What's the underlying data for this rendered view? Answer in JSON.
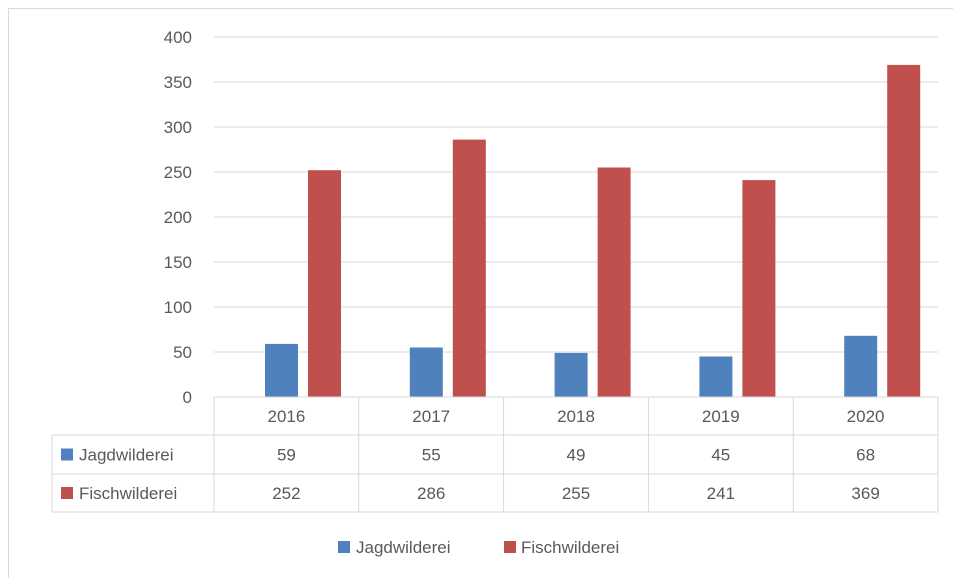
{
  "chart_data": {
    "type": "bar",
    "categories": [
      "2016",
      "2017",
      "2018",
      "2019",
      "2020"
    ],
    "series": [
      {
        "name": "Jagdwilderei",
        "values": [
          59,
          55,
          49,
          45,
          68
        ],
        "color": "#4f81bd"
      },
      {
        "name": "Fischwilderei",
        "values": [
          252,
          286,
          255,
          241,
          369
        ],
        "color": "#c0504d"
      }
    ],
    "ylim": [
      0,
      400
    ],
    "yticks": [
      0,
      50,
      100,
      150,
      200,
      250,
      300,
      350,
      400
    ],
    "grid": true,
    "data_table": true,
    "legend_position": "bottom",
    "colors": {
      "grid": "#d9d9d9",
      "text": "#595959",
      "table_border": "#d9d9d9"
    }
  }
}
